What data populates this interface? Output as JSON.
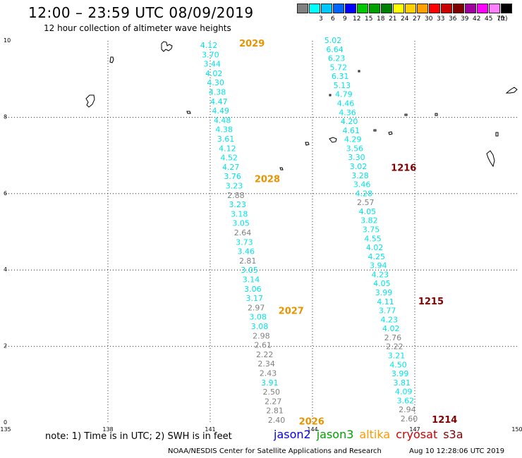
{
  "header": {
    "title": "12:00 – 23:59 UTC 08/09/2019",
    "subtitle": "12 hour collection of altimeter wave heights"
  },
  "colorbar": {
    "unit": "(ft)",
    "levels": [
      {
        "label": "",
        "color": "#808080"
      },
      {
        "label": "3",
        "color": "#00ffff"
      },
      {
        "label": "6",
        "color": "#00c8ff"
      },
      {
        "label": "9",
        "color": "#0064ff"
      },
      {
        "label": "12",
        "color": "#0000ff"
      },
      {
        "label": "15",
        "color": "#00c800"
      },
      {
        "label": "18",
        "color": "#00a000"
      },
      {
        "label": "21",
        "color": "#008000"
      },
      {
        "label": "24",
        "color": "#ffff00"
      },
      {
        "label": "27",
        "color": "#ffd000"
      },
      {
        "label": "30",
        "color": "#ffa000"
      },
      {
        "label": "33",
        "color": "#ff0000"
      },
      {
        "label": "36",
        "color": "#c80000"
      },
      {
        "label": "39",
        "color": "#800000"
      },
      {
        "label": "42",
        "color": "#a000a0"
      },
      {
        "label": "45",
        "color": "#ff00ff"
      },
      {
        "label": "70",
        "color": "#ff80ff"
      },
      {
        "label": "",
        "color": "#000000"
      }
    ]
  },
  "map": {
    "lon_range": [
      135,
      150
    ],
    "lat_range": [
      0,
      10
    ],
    "lon_ticks": [
      "135",
      "138",
      "141",
      "144",
      "147",
      "150"
    ],
    "lat_ticks": [
      "0",
      "2",
      "4",
      "6",
      "8",
      "10"
    ],
    "pass_color": "#e69500",
    "pass_color_dark": "#800000",
    "gray_color": "#808080",
    "cyan_color": "#00e5e5",
    "passes": [
      {
        "label": "2029",
        "lon": 141.85,
        "lat": 9.85,
        "dark": false
      },
      {
        "label": "2028",
        "lon": 142.3,
        "lat": 6.3,
        "dark": false
      },
      {
        "label": "2027",
        "lon": 143.0,
        "lat": 2.85,
        "dark": false
      },
      {
        "label": "2026",
        "lon": 143.6,
        "lat": -0.05,
        "dark": false
      },
      {
        "label": "1216",
        "lon": 146.3,
        "lat": 6.6,
        "dark": true
      },
      {
        "label": "1215",
        "lon": 147.1,
        "lat": 3.1,
        "dark": true
      },
      {
        "label": "1214",
        "lon": 147.5,
        "lat": 0.0,
        "dark": true
      }
    ],
    "tracks": [
      [
        {
          "v": "4.12",
          "c": "cyan"
        },
        {
          "v": "3.70",
          "c": "cyan"
        },
        {
          "v": "3.44",
          "c": "cyan"
        },
        {
          "v": "4.02",
          "c": "cyan"
        },
        {
          "v": "4.30",
          "c": "cyan"
        },
        {
          "v": "4.38",
          "c": "cyan"
        },
        {
          "v": "4.47",
          "c": "cyan"
        },
        {
          "v": "4.49",
          "c": "cyan"
        },
        {
          "v": "4.48",
          "c": "cyan"
        },
        {
          "v": "4.38",
          "c": "cyan"
        },
        {
          "v": "3.61",
          "c": "cyan"
        },
        {
          "v": "4.12",
          "c": "cyan"
        },
        {
          "v": "4.52",
          "c": "cyan"
        },
        {
          "v": "4.27",
          "c": "cyan"
        },
        {
          "v": "3.76",
          "c": "cyan"
        },
        {
          "v": "3.23",
          "c": "cyan"
        },
        {
          "v": "2.88",
          "c": "gray"
        },
        {
          "v": "3.23",
          "c": "cyan"
        },
        {
          "v": "3.18",
          "c": "cyan"
        },
        {
          "v": "3.05",
          "c": "cyan"
        },
        {
          "v": "2.64",
          "c": "gray"
        },
        {
          "v": "3.73",
          "c": "cyan"
        },
        {
          "v": "3.46",
          "c": "cyan"
        },
        {
          "v": "2.81",
          "c": "gray"
        },
        {
          "v": "3.05",
          "c": "cyan"
        },
        {
          "v": "3.14",
          "c": "cyan"
        },
        {
          "v": "3.06",
          "c": "cyan"
        },
        {
          "v": "3.17",
          "c": "cyan"
        },
        {
          "v": "2.97",
          "c": "gray"
        },
        {
          "v": "3.08",
          "c": "cyan"
        },
        {
          "v": "3.08",
          "c": "cyan"
        },
        {
          "v": "2.98",
          "c": "gray"
        },
        {
          "v": "2.61",
          "c": "gray"
        },
        {
          "v": "2.22",
          "c": "gray"
        },
        {
          "v": "2.34",
          "c": "gray"
        },
        {
          "v": "2.43",
          "c": "gray"
        },
        {
          "v": "3.91",
          "c": "cyan"
        },
        {
          "v": "2.50",
          "c": "gray"
        },
        {
          "v": "2.27",
          "c": "gray"
        },
        {
          "v": "2.81",
          "c": "gray"
        },
        {
          "v": "2.40",
          "c": "gray"
        }
      ],
      [
        {
          "v": "5.02",
          "c": "cyan"
        },
        {
          "v": "6.64",
          "c": "cyan"
        },
        {
          "v": "6.23",
          "c": "cyan"
        },
        {
          "v": "5.72",
          "c": "cyan"
        },
        {
          "v": "6.31",
          "c": "cyan"
        },
        {
          "v": "5.13",
          "c": "cyan"
        },
        {
          "v": "4.79",
          "c": "cyan"
        },
        {
          "v": "4.46",
          "c": "cyan"
        },
        {
          "v": "4.36",
          "c": "cyan"
        },
        {
          "v": "4.20",
          "c": "cyan"
        },
        {
          "v": "4.61",
          "c": "cyan"
        },
        {
          "v": "4.29",
          "c": "cyan"
        },
        {
          "v": "3.56",
          "c": "cyan"
        },
        {
          "v": "3.30",
          "c": "cyan"
        },
        {
          "v": "3.02",
          "c": "cyan"
        },
        {
          "v": "3.28",
          "c": "cyan"
        },
        {
          "v": "3.46",
          "c": "cyan"
        },
        {
          "v": "4.28",
          "c": "cyan"
        },
        {
          "v": "2.57",
          "c": "gray"
        },
        {
          "v": "4.05",
          "c": "cyan"
        },
        {
          "v": "3.82",
          "c": "cyan"
        },
        {
          "v": "3.75",
          "c": "cyan"
        },
        {
          "v": "4.55",
          "c": "cyan"
        },
        {
          "v": "4.02",
          "c": "cyan"
        },
        {
          "v": "4.25",
          "c": "cyan"
        },
        {
          "v": "3.94",
          "c": "cyan"
        },
        {
          "v": "4.23",
          "c": "cyan"
        },
        {
          "v": "4.05",
          "c": "cyan"
        },
        {
          "v": "3.99",
          "c": "cyan"
        },
        {
          "v": "4.11",
          "c": "cyan"
        },
        {
          "v": "3.77",
          "c": "cyan"
        },
        {
          "v": "4.23",
          "c": "cyan"
        },
        {
          "v": "4.02",
          "c": "cyan"
        },
        {
          "v": "2.76",
          "c": "gray"
        },
        {
          "v": "2.22",
          "c": "gray"
        },
        {
          "v": "3.21",
          "c": "cyan"
        },
        {
          "v": "4.50",
          "c": "cyan"
        },
        {
          "v": "3.99",
          "c": "cyan"
        },
        {
          "v": "3.81",
          "c": "cyan"
        },
        {
          "v": "4.09",
          "c": "cyan"
        },
        {
          "v": "3.62",
          "c": "cyan"
        },
        {
          "v": "2.94",
          "c": "gray"
        },
        {
          "v": "2.60",
          "c": "gray"
        }
      ]
    ]
  },
  "footer": {
    "note": "note:  1) Time is in UTC; 2) SWH is in feet",
    "satellites": [
      {
        "name": "jason2",
        "color": "#0000ff"
      },
      {
        "name": "jason3",
        "color": "#00a000"
      },
      {
        "name": "altika",
        "color": "#ff9900"
      },
      {
        "name": "cryosat",
        "color": "#d00000"
      },
      {
        "name": "s3a",
        "color": "#800000"
      }
    ],
    "credit": "NOAA/NESDIS Center for Satellite Applications and Research",
    "timestamp": "Aug 10 12:28:06 UTC 2019"
  }
}
